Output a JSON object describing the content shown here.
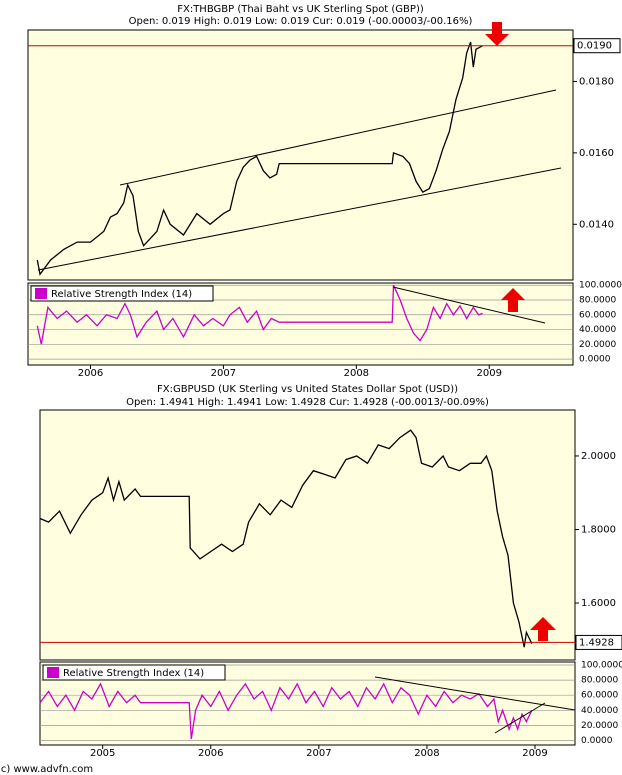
{
  "chart_data": [
    {
      "type": "line",
      "title": "FX:THBGBP (Thai Baht vs UK Sterling Spot (GBP))",
      "subtitle": "Open: 0.019 High: 0.019 Low: 0.019 Cur: 0.019 (-00.00003/-00.16%)",
      "xlim": [
        2005.53,
        2009.63
      ],
      "xticks": [
        2006,
        2007,
        2008,
        2009
      ],
      "ylim": [
        0.01244,
        0.01944
      ],
      "yticks": [
        {
          "value": 0.014,
          "label": "0.0140"
        },
        {
          "value": 0.016,
          "label": "0.0160"
        },
        {
          "value": 0.018,
          "label": "0.0180"
        }
      ],
      "last_price": {
        "value": 0.019,
        "label": "0.0190"
      },
      "color": "#000000",
      "x": [
        2005.6,
        2005.62,
        2005.7,
        2005.8,
        2005.9,
        2006.0,
        2006.1,
        2006.15,
        2006.2,
        2006.25,
        2006.28,
        2006.32,
        2006.36,
        2006.4,
        2006.5,
        2006.55,
        2006.6,
        2006.7,
        2006.8,
        2006.9,
        2007.0,
        2007.05,
        2007.1,
        2007.15,
        2007.2,
        2007.25,
        2007.3,
        2007.35,
        2007.4,
        2007.42,
        2008.27,
        2008.28,
        2008.35,
        2008.4,
        2008.45,
        2008.5,
        2008.55,
        2008.6,
        2008.65,
        2008.7,
        2008.75,
        2008.8,
        2008.83,
        2008.86,
        2008.88,
        2008.9,
        2008.95
      ],
      "values": [
        0.013,
        0.0126,
        0.013,
        0.0133,
        0.0135,
        0.0135,
        0.0138,
        0.0142,
        0.0143,
        0.0146,
        0.0151,
        0.0148,
        0.0138,
        0.0134,
        0.0138,
        0.0144,
        0.014,
        0.0137,
        0.0143,
        0.014,
        0.0143,
        0.0144,
        0.0152,
        0.0156,
        0.0158,
        0.0159,
        0.0155,
        0.0153,
        0.0154,
        0.0157,
        0.0157,
        0.016,
        0.0159,
        0.0157,
        0.0152,
        0.0149,
        0.015,
        0.0155,
        0.0161,
        0.0166,
        0.0175,
        0.0181,
        0.0188,
        0.0191,
        0.0184,
        0.0189,
        0.019
      ],
      "rsi": {
        "title": "Relative Strength Index (14)",
        "color": "#cc00cc",
        "grid": true,
        "ylim": [
          -8,
          103
        ],
        "yticks": [
          {
            "value": 0,
            "label": "0.0000"
          },
          {
            "value": 20,
            "label": "20.0000"
          },
          {
            "value": 40,
            "label": "40.0000"
          },
          {
            "value": 60,
            "label": "60.0000"
          },
          {
            "value": 80,
            "label": "80.0000"
          },
          {
            "value": 100,
            "label": "100.0000"
          }
        ],
        "x": [
          2005.6,
          2005.63,
          2005.68,
          2005.75,
          2005.82,
          2005.9,
          2005.97,
          2006.05,
          2006.12,
          2006.2,
          2006.26,
          2006.3,
          2006.35,
          2006.42,
          2006.5,
          2006.55,
          2006.62,
          2006.7,
          2006.78,
          2006.85,
          2006.92,
          2007.0,
          2007.05,
          2007.12,
          2007.18,
          2007.25,
          2007.3,
          2007.36,
          2007.42,
          2008.27,
          2008.28,
          2008.33,
          2008.38,
          2008.43,
          2008.48,
          2008.53,
          2008.58,
          2008.63,
          2008.68,
          2008.73,
          2008.78,
          2008.83,
          2008.88,
          2008.92,
          2008.95
        ],
        "values": [
          45,
          20,
          70,
          55,
          65,
          50,
          60,
          45,
          60,
          55,
          75,
          60,
          30,
          50,
          65,
          40,
          55,
          30,
          60,
          45,
          55,
          45,
          60,
          70,
          50,
          65,
          40,
          55,
          50,
          50,
          100,
          80,
          55,
          35,
          25,
          40,
          70,
          55,
          75,
          60,
          72,
          55,
          70,
          60,
          62
        ]
      }
    },
    {
      "type": "line",
      "title": "FX:GBPUSD (UK Sterling vs United States Dollar Spot (USD))",
      "subtitle": "Open: 1.4941 High: 1.4941 Low: 1.4928 Cur: 1.4928 (-00.0013/-00.09%)",
      "xlim": [
        2004.42,
        2009.37
      ],
      "xticks": [
        2005,
        2006,
        2007,
        2008,
        2009
      ],
      "ylim": [
        1.445,
        2.125
      ],
      "yticks": [
        {
          "value": 1.6,
          "label": "1.6000"
        },
        {
          "value": 1.8,
          "label": "1.8000"
        },
        {
          "value": 2,
          "label": "2.0000"
        }
      ],
      "last_price": {
        "value": 1.4928,
        "label": "1.4928"
      },
      "color": "#000000",
      "x": [
        2004.42,
        2004.5,
        2004.6,
        2004.7,
        2004.8,
        2004.9,
        2005.0,
        2005.05,
        2005.1,
        2005.15,
        2005.2,
        2005.3,
        2005.35,
        2005.8,
        2005.81,
        2005.9,
        2006.0,
        2006.1,
        2006.2,
        2006.3,
        2006.35,
        2006.45,
        2006.55,
        2006.65,
        2006.75,
        2006.85,
        2006.95,
        2007.05,
        2007.15,
        2007.25,
        2007.35,
        2007.45,
        2007.55,
        2007.65,
        2007.75,
        2007.85,
        2007.9,
        2007.95,
        2008.05,
        2008.15,
        2008.2,
        2008.3,
        2008.4,
        2008.5,
        2008.55,
        2008.6,
        2008.65,
        2008.7,
        2008.75,
        2008.8,
        2008.85,
        2008.9,
        2008.92,
        2008.97
      ],
      "values": [
        1.83,
        1.82,
        1.85,
        1.79,
        1.84,
        1.88,
        1.9,
        1.94,
        1.88,
        1.93,
        1.88,
        1.91,
        1.89,
        1.89,
        1.75,
        1.72,
        1.74,
        1.76,
        1.74,
        1.76,
        1.82,
        1.87,
        1.84,
        1.88,
        1.86,
        1.92,
        1.96,
        1.95,
        1.94,
        1.99,
        2.0,
        1.98,
        2.03,
        2.02,
        2.05,
        2.07,
        2.05,
        1.98,
        1.97,
        2.0,
        1.97,
        1.96,
        1.98,
        1.98,
        2.0,
        1.96,
        1.85,
        1.78,
        1.73,
        1.6,
        1.55,
        1.48,
        1.52,
        1.49
      ],
      "rsi": {
        "title": "Relative Strength Index (14)",
        "color": "#cc00cc",
        "grid": true,
        "ylim": [
          -6,
          104
        ],
        "yticks": [
          {
            "value": 0,
            "label": "0.0000"
          },
          {
            "value": 20,
            "label": "20.0000"
          },
          {
            "value": 40,
            "label": "40.0000"
          },
          {
            "value": 60,
            "label": "60.0000"
          },
          {
            "value": 80,
            "label": "80.0000"
          },
          {
            "value": 100,
            "label": "100.0000"
          }
        ],
        "x": [
          2004.42,
          2004.5,
          2004.58,
          2004.66,
          2004.74,
          2004.82,
          2004.9,
          2004.98,
          2005.06,
          2005.14,
          2005.22,
          2005.3,
          2005.35,
          2005.8,
          2005.82,
          2005.86,
          2005.92,
          2006.0,
          2006.08,
          2006.16,
          2006.24,
          2006.32,
          2006.4,
          2006.48,
          2006.56,
          2006.64,
          2006.72,
          2006.8,
          2006.88,
          2006.96,
          2007.04,
          2007.12,
          2007.2,
          2007.28,
          2007.36,
          2007.44,
          2007.52,
          2007.6,
          2007.68,
          2007.76,
          2007.84,
          2007.92,
          2008.0,
          2008.08,
          2008.16,
          2008.24,
          2008.32,
          2008.4,
          2008.48,
          2008.56,
          2008.62,
          2008.66,
          2008.7,
          2008.76,
          2008.8,
          2008.84,
          2008.88,
          2008.92,
          2008.97
        ],
        "values": [
          50,
          65,
          45,
          60,
          40,
          65,
          55,
          75,
          45,
          65,
          50,
          60,
          50,
          50,
          2,
          40,
          60,
          45,
          65,
          40,
          60,
          75,
          55,
          65,
          40,
          70,
          55,
          75,
          50,
          65,
          45,
          70,
          55,
          65,
          45,
          70,
          55,
          75,
          50,
          70,
          60,
          35,
          60,
          45,
          65,
          50,
          60,
          55,
          62,
          45,
          55,
          25,
          40,
          15,
          30,
          15,
          35,
          25,
          40
        ]
      }
    }
  ],
  "footer": "(c) www.advfn.com"
}
